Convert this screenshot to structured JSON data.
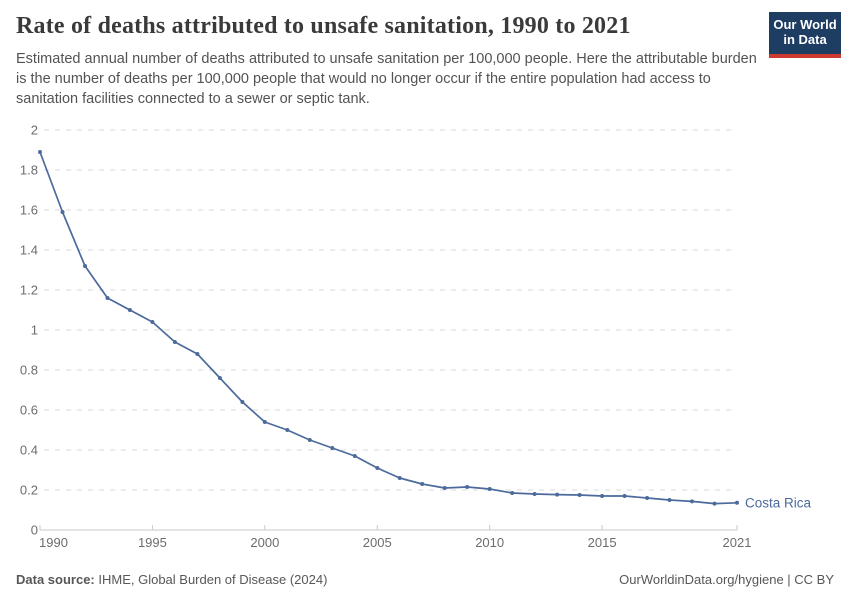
{
  "header": {
    "title": "Rate of deaths attributed to unsafe sanitation, 1990 to 2021",
    "subtitle": "Estimated annual number of deaths attributed to unsafe sanitation per 100,000 people. Here the attributable burden is the number of deaths per 100,000 people that would no longer occur if the entire population had access to sanitation facilities connected to a sewer or septic tank."
  },
  "logo": {
    "line1": "Our World",
    "line2": "in Data",
    "bg_color": "#1d3d63",
    "stripe_color": "#cf3a30",
    "text_color": "#ffffff"
  },
  "chart_data": {
    "type": "line",
    "title": "Rate of deaths attributed to unsafe sanitation, 1990 to 2021",
    "x": [
      1990,
      1991,
      1992,
      1993,
      1994,
      1995,
      1996,
      1997,
      1998,
      1999,
      2000,
      2001,
      2002,
      2003,
      2004,
      2005,
      2006,
      2007,
      2008,
      2009,
      2010,
      2011,
      2012,
      2013,
      2014,
      2015,
      2016,
      2017,
      2018,
      2019,
      2020,
      2021
    ],
    "series": [
      {
        "name": "Costa Rica",
        "color": "#4c6a9c",
        "values": [
          1.89,
          1.59,
          1.32,
          1.16,
          1.1,
          1.04,
          0.94,
          0.88,
          0.76,
          0.64,
          0.54,
          0.5,
          0.45,
          0.41,
          0.37,
          0.31,
          0.26,
          0.23,
          0.21,
          0.215,
          0.205,
          0.185,
          0.18,
          0.177,
          0.175,
          0.17,
          0.17,
          0.16,
          0.15,
          0.143,
          0.132,
          0.136
        ]
      }
    ],
    "xlabel": "",
    "ylabel": "",
    "ylim": [
      0,
      2
    ],
    "yticks": [
      0,
      0.2,
      0.4,
      0.6,
      0.8,
      1,
      1.2,
      1.4,
      1.6,
      1.8,
      2
    ],
    "xticks": [
      1990,
      1995,
      2000,
      2005,
      2010,
      2015,
      2021
    ],
    "grid": "horizontal-dashed",
    "legend": "end-of-line-label",
    "grid_color": "#dadada",
    "axis_color": "#c9c9c9",
    "tick_label_color": "#6d6d6d"
  },
  "footer": {
    "source_label": "Data source:",
    "source_value": " IHME, Global Burden of Disease (2024)",
    "credit": "OurWorldinData.org/hygiene | CC BY"
  }
}
